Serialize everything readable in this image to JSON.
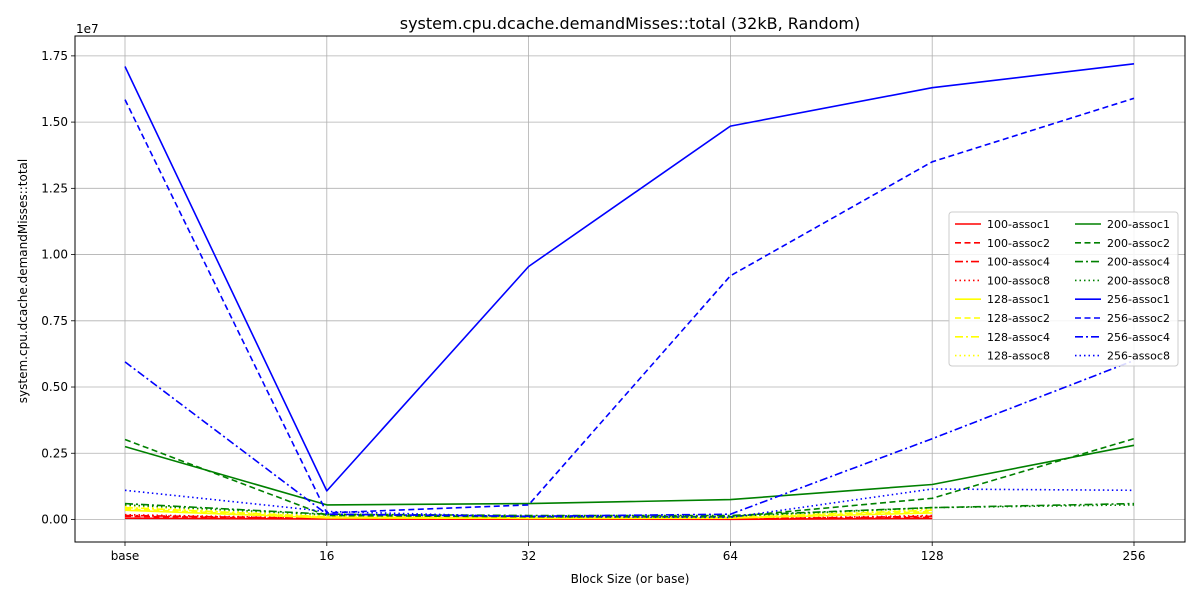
{
  "chart_data": {
    "type": "line",
    "title": "system.cpu.dcache.demandMisses::total (32kB, Random)",
    "xlabel": "Block Size (or base)",
    "ylabel": "system.cpu.dcache.demandMisses::total",
    "y_exponent_label": "1e7",
    "categories": [
      "base",
      "16",
      "32",
      "64",
      "128",
      "256"
    ],
    "yticks": [
      0,
      2500000,
      5000000,
      7500000,
      10000000,
      12500000,
      15000000,
      17500000
    ],
    "ytick_labels": [
      "0.00",
      "0.25",
      "0.50",
      "0.75",
      "1.00",
      "1.25",
      "1.50",
      "1.75"
    ],
    "ylim": [
      -850000,
      18250000
    ],
    "grid": true,
    "legend_position": "center-right",
    "legend_columns": 2,
    "series": [
      {
        "name": "100-assoc1",
        "color": "#ff0000",
        "dash": "solid",
        "values": [
          50000,
          20000,
          10000,
          5000,
          40000,
          null
        ]
      },
      {
        "name": "100-assoc2",
        "color": "#ff0000",
        "dash": "dashed",
        "values": [
          120000,
          30000,
          15000,
          10000,
          80000,
          null
        ]
      },
      {
        "name": "100-assoc4",
        "color": "#ff0000",
        "dash": "dashdot",
        "values": [
          150000,
          40000,
          20000,
          15000,
          120000,
          null
        ]
      },
      {
        "name": "100-assoc8",
        "color": "#ff0000",
        "dash": "dotted",
        "values": [
          180000,
          50000,
          25000,
          20000,
          150000,
          null
        ]
      },
      {
        "name": "128-assoc1",
        "color": "#ffff00",
        "dash": "solid",
        "values": [
          350000,
          60000,
          40000,
          50000,
          250000,
          null
        ]
      },
      {
        "name": "128-assoc2",
        "color": "#ffff00",
        "dash": "dashed",
        "values": [
          400000,
          80000,
          50000,
          60000,
          300000,
          null
        ]
      },
      {
        "name": "128-assoc4",
        "color": "#ffff00",
        "dash": "dashdot",
        "values": [
          450000,
          100000,
          60000,
          80000,
          350000,
          null
        ]
      },
      {
        "name": "128-assoc8",
        "color": "#ffff00",
        "dash": "dotted",
        "values": [
          500000,
          120000,
          70000,
          100000,
          400000,
          null
        ]
      },
      {
        "name": "200-assoc1",
        "color": "#008000",
        "dash": "solid",
        "values": [
          2750000,
          550000,
          600000,
          750000,
          1320000,
          2800000
        ]
      },
      {
        "name": "200-assoc2",
        "color": "#008000",
        "dash": "dashed",
        "values": [
          3020000,
          150000,
          100000,
          100000,
          800000,
          3050000
        ]
      },
      {
        "name": "200-assoc4",
        "color": "#008000",
        "dash": "dashdot",
        "values": [
          600000,
          200000,
          150000,
          150000,
          450000,
          600000
        ]
      },
      {
        "name": "200-assoc8",
        "color": "#008000",
        "dash": "dotted",
        "values": [
          550000,
          180000,
          120000,
          120000,
          450000,
          550000
        ]
      },
      {
        "name": "256-assoc1",
        "color": "#0000ff",
        "dash": "solid",
        "values": [
          17100000,
          1080000,
          9550000,
          14850000,
          16300000,
          17200000
        ]
      },
      {
        "name": "256-assoc2",
        "color": "#0000ff",
        "dash": "dashed",
        "values": [
          15850000,
          250000,
          550000,
          9200000,
          13500000,
          15900000
        ]
      },
      {
        "name": "256-assoc4",
        "color": "#0000ff",
        "dash": "dashdot",
        "values": [
          5950000,
          200000,
          120000,
          200000,
          3050000,
          6000000
        ]
      },
      {
        "name": "256-assoc8",
        "color": "#0000ff",
        "dash": "dotted",
        "values": [
          1100000,
          300000,
          100000,
          80000,
          1150000,
          1100000
        ]
      }
    ]
  }
}
